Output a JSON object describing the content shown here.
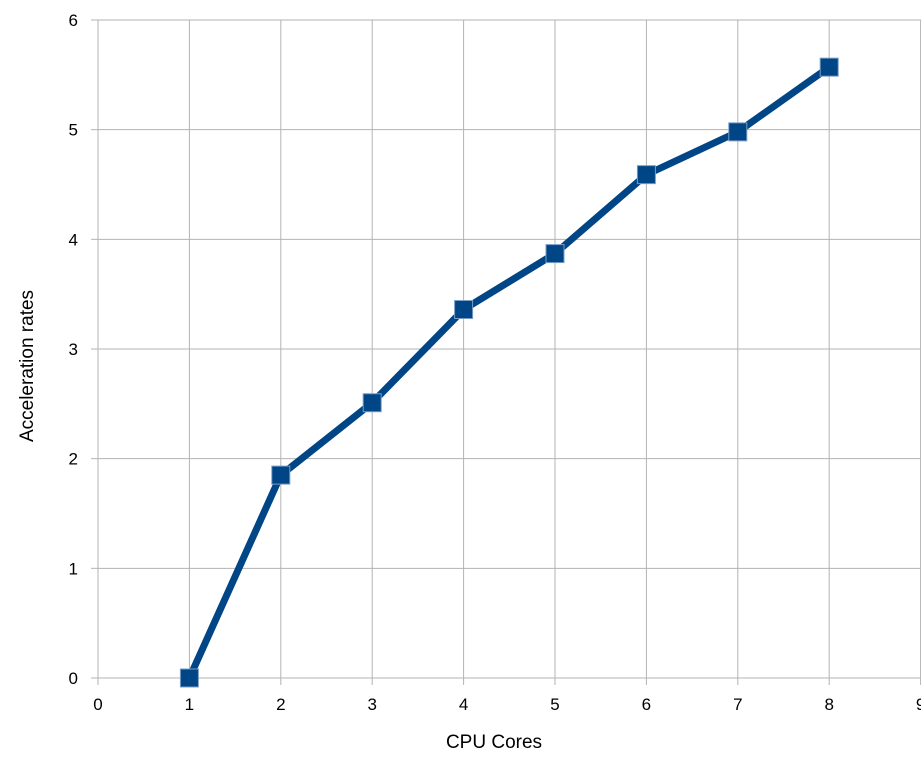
{
  "chart_data": {
    "type": "line",
    "title": "",
    "xlabel": "CPU Cores",
    "ylabel": "Acceleration rates",
    "xlim": [
      0,
      9
    ],
    "ylim": [
      0,
      6
    ],
    "x_ticks": [
      0,
      1,
      2,
      3,
      4,
      5,
      6,
      7,
      8,
      9
    ],
    "y_ticks": [
      0,
      1,
      2,
      3,
      4,
      5,
      6
    ],
    "grid": true,
    "legend": "none",
    "marker": "square",
    "series": [
      {
        "x": [
          1,
          2,
          3,
          4,
          5,
          6,
          7,
          8
        ],
        "values": [
          0,
          1.85,
          2.51,
          3.36,
          3.87,
          4.59,
          4.98,
          5.57
        ],
        "color": "#004586"
      }
    ],
    "colors": {
      "series": "#004586",
      "grid": "#b3b3b3",
      "axis": "#b3b3b3"
    }
  }
}
